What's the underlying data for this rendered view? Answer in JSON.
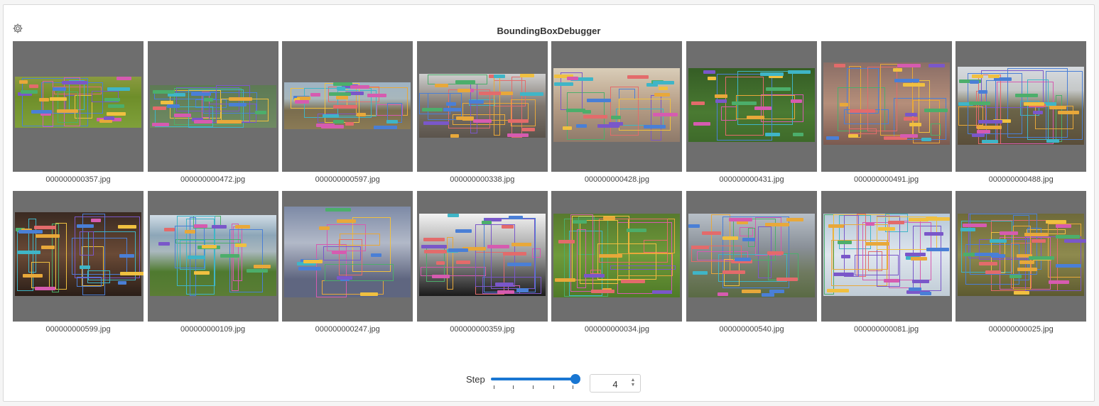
{
  "panel": {
    "title": "BoundingBoxDebugger"
  },
  "settings": {
    "icon": "gear-icon"
  },
  "images": [
    {
      "filename": "000000000357.jpg"
    },
    {
      "filename": "000000000472.jpg"
    },
    {
      "filename": "000000000597.jpg"
    },
    {
      "filename": "000000000338.jpg"
    },
    {
      "filename": "000000000428.jpg"
    },
    {
      "filename": "000000000431.jpg"
    },
    {
      "filename": "000000000491.jpg"
    },
    {
      "filename": "000000000488.jpg"
    },
    {
      "filename": "000000000599.jpg"
    },
    {
      "filename": "000000000109.jpg"
    },
    {
      "filename": "000000000247.jpg"
    },
    {
      "filename": "000000000359.jpg"
    },
    {
      "filename": "000000000034.jpg"
    },
    {
      "filename": "000000000540.jpg"
    },
    {
      "filename": "000000000081.jpg"
    },
    {
      "filename": "000000000025.jpg"
    }
  ],
  "step": {
    "label": "Step",
    "value": "4",
    "slider_fraction": 1.0
  },
  "colors": {
    "accent": "#1976d2",
    "tile_bg": "#6e6e6e",
    "box_palette": [
      "#4a7fd6",
      "#e8a83a",
      "#d65bb0",
      "#4cae6b",
      "#7a57c9",
      "#3fb5c7",
      "#e36b6b",
      "#f0c040"
    ]
  }
}
